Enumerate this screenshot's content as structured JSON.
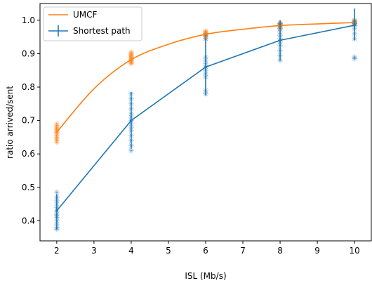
{
  "chart_data": {
    "type": "line",
    "xlabel": "ISL (Mb/s)",
    "ylabel": "ratio arrived/sent",
    "xlim": [
      1.55,
      10.45
    ],
    "ylim": [
      0.34,
      1.05
    ],
    "xticks": [
      2,
      3,
      4,
      5,
      6,
      7,
      8,
      9,
      10
    ],
    "yticks": [
      0.4,
      0.5,
      0.6,
      0.7,
      0.8,
      0.9,
      1.0
    ],
    "ytick_labels": [
      "0.4",
      "0.5",
      "0.6",
      "0.7",
      "0.8",
      "0.9",
      "1.0"
    ],
    "grid": false,
    "legend_position": "top-left",
    "series": [
      {
        "name": "UMCF",
        "color": "#ff7f0e",
        "style": "smooth-fit-line",
        "fit_points": [
          {
            "x": 2,
            "y": 0.665
          },
          {
            "x": 3,
            "y": 0.795
          },
          {
            "x": 4,
            "y": 0.882
          },
          {
            "x": 5,
            "y": 0.928
          },
          {
            "x": 6,
            "y": 0.958
          },
          {
            "x": 7,
            "y": 0.973
          },
          {
            "x": 8,
            "y": 0.984
          },
          {
            "x": 9,
            "y": 0.989
          },
          {
            "x": 10,
            "y": 0.993
          }
        ],
        "scatter": [
          {
            "x": 2,
            "y": [
              0.635,
              0.64,
              0.645,
              0.65,
              0.655,
              0.66,
              0.665,
              0.668,
              0.672,
              0.676,
              0.68,
              0.685,
              0.69
            ]
          },
          {
            "x": 4,
            "y": [
              0.87,
              0.873,
              0.876,
              0.879,
              0.882,
              0.885,
              0.888,
              0.891,
              0.894,
              0.897,
              0.9,
              0.905
            ]
          },
          {
            "x": 6,
            "y": [
              0.945,
              0.95,
              0.953,
              0.956,
              0.958,
              0.96,
              0.962,
              0.965,
              0.968
            ]
          },
          {
            "x": 8,
            "y": [
              0.975,
              0.978,
              0.981,
              0.984,
              0.986,
              0.988,
              0.99,
              0.993
            ]
          },
          {
            "x": 10,
            "y": [
              0.988,
              0.99,
              0.992,
              0.994,
              0.996,
              0.998
            ]
          }
        ]
      },
      {
        "name": "Shortest path",
        "color": "#1f77b4",
        "style": "errorbar-line",
        "points": [
          {
            "x": 2,
            "y": 0.43,
            "ymin": 0.375,
            "ymax": 0.48
          },
          {
            "x": 4,
            "y": 0.7,
            "ymin": 0.615,
            "ymax": 0.785
          },
          {
            "x": 6,
            "y": 0.86,
            "ymin": 0.775,
            "ymax": 0.945
          },
          {
            "x": 8,
            "y": 0.94,
            "ymin": 0.88,
            "ymax": 1.0
          },
          {
            "x": 10,
            "y": 0.985,
            "ymin": 0.94,
            "ymax": 1.035
          }
        ],
        "scatter": [
          {
            "x": 2,
            "y": [
              0.375,
              0.38,
              0.39,
              0.4,
              0.41,
              0.415,
              0.42,
              0.43,
              0.44,
              0.45,
              0.46,
              0.47,
              0.485
            ]
          },
          {
            "x": 4,
            "y": [
              0.61,
              0.625,
              0.64,
              0.655,
              0.67,
              0.68,
              0.69,
              0.7,
              0.71,
              0.72,
              0.735,
              0.75,
              0.765,
              0.78
            ]
          },
          {
            "x": 6,
            "y": [
              0.78,
              0.79,
              0.83,
              0.84,
              0.85,
              0.86,
              0.87,
              0.88,
              0.89,
              0.945,
              0.955
            ]
          },
          {
            "x": 8,
            "y": [
              0.88,
              0.895,
              0.91,
              0.925,
              0.935,
              0.945,
              0.955,
              0.965,
              0.975,
              0.985,
              0.99
            ]
          },
          {
            "x": 10,
            "y": [
              0.885,
              0.89,
              0.945,
              0.96,
              0.975,
              0.985,
              0.99,
              0.995,
              1.0
            ]
          }
        ]
      }
    ]
  }
}
